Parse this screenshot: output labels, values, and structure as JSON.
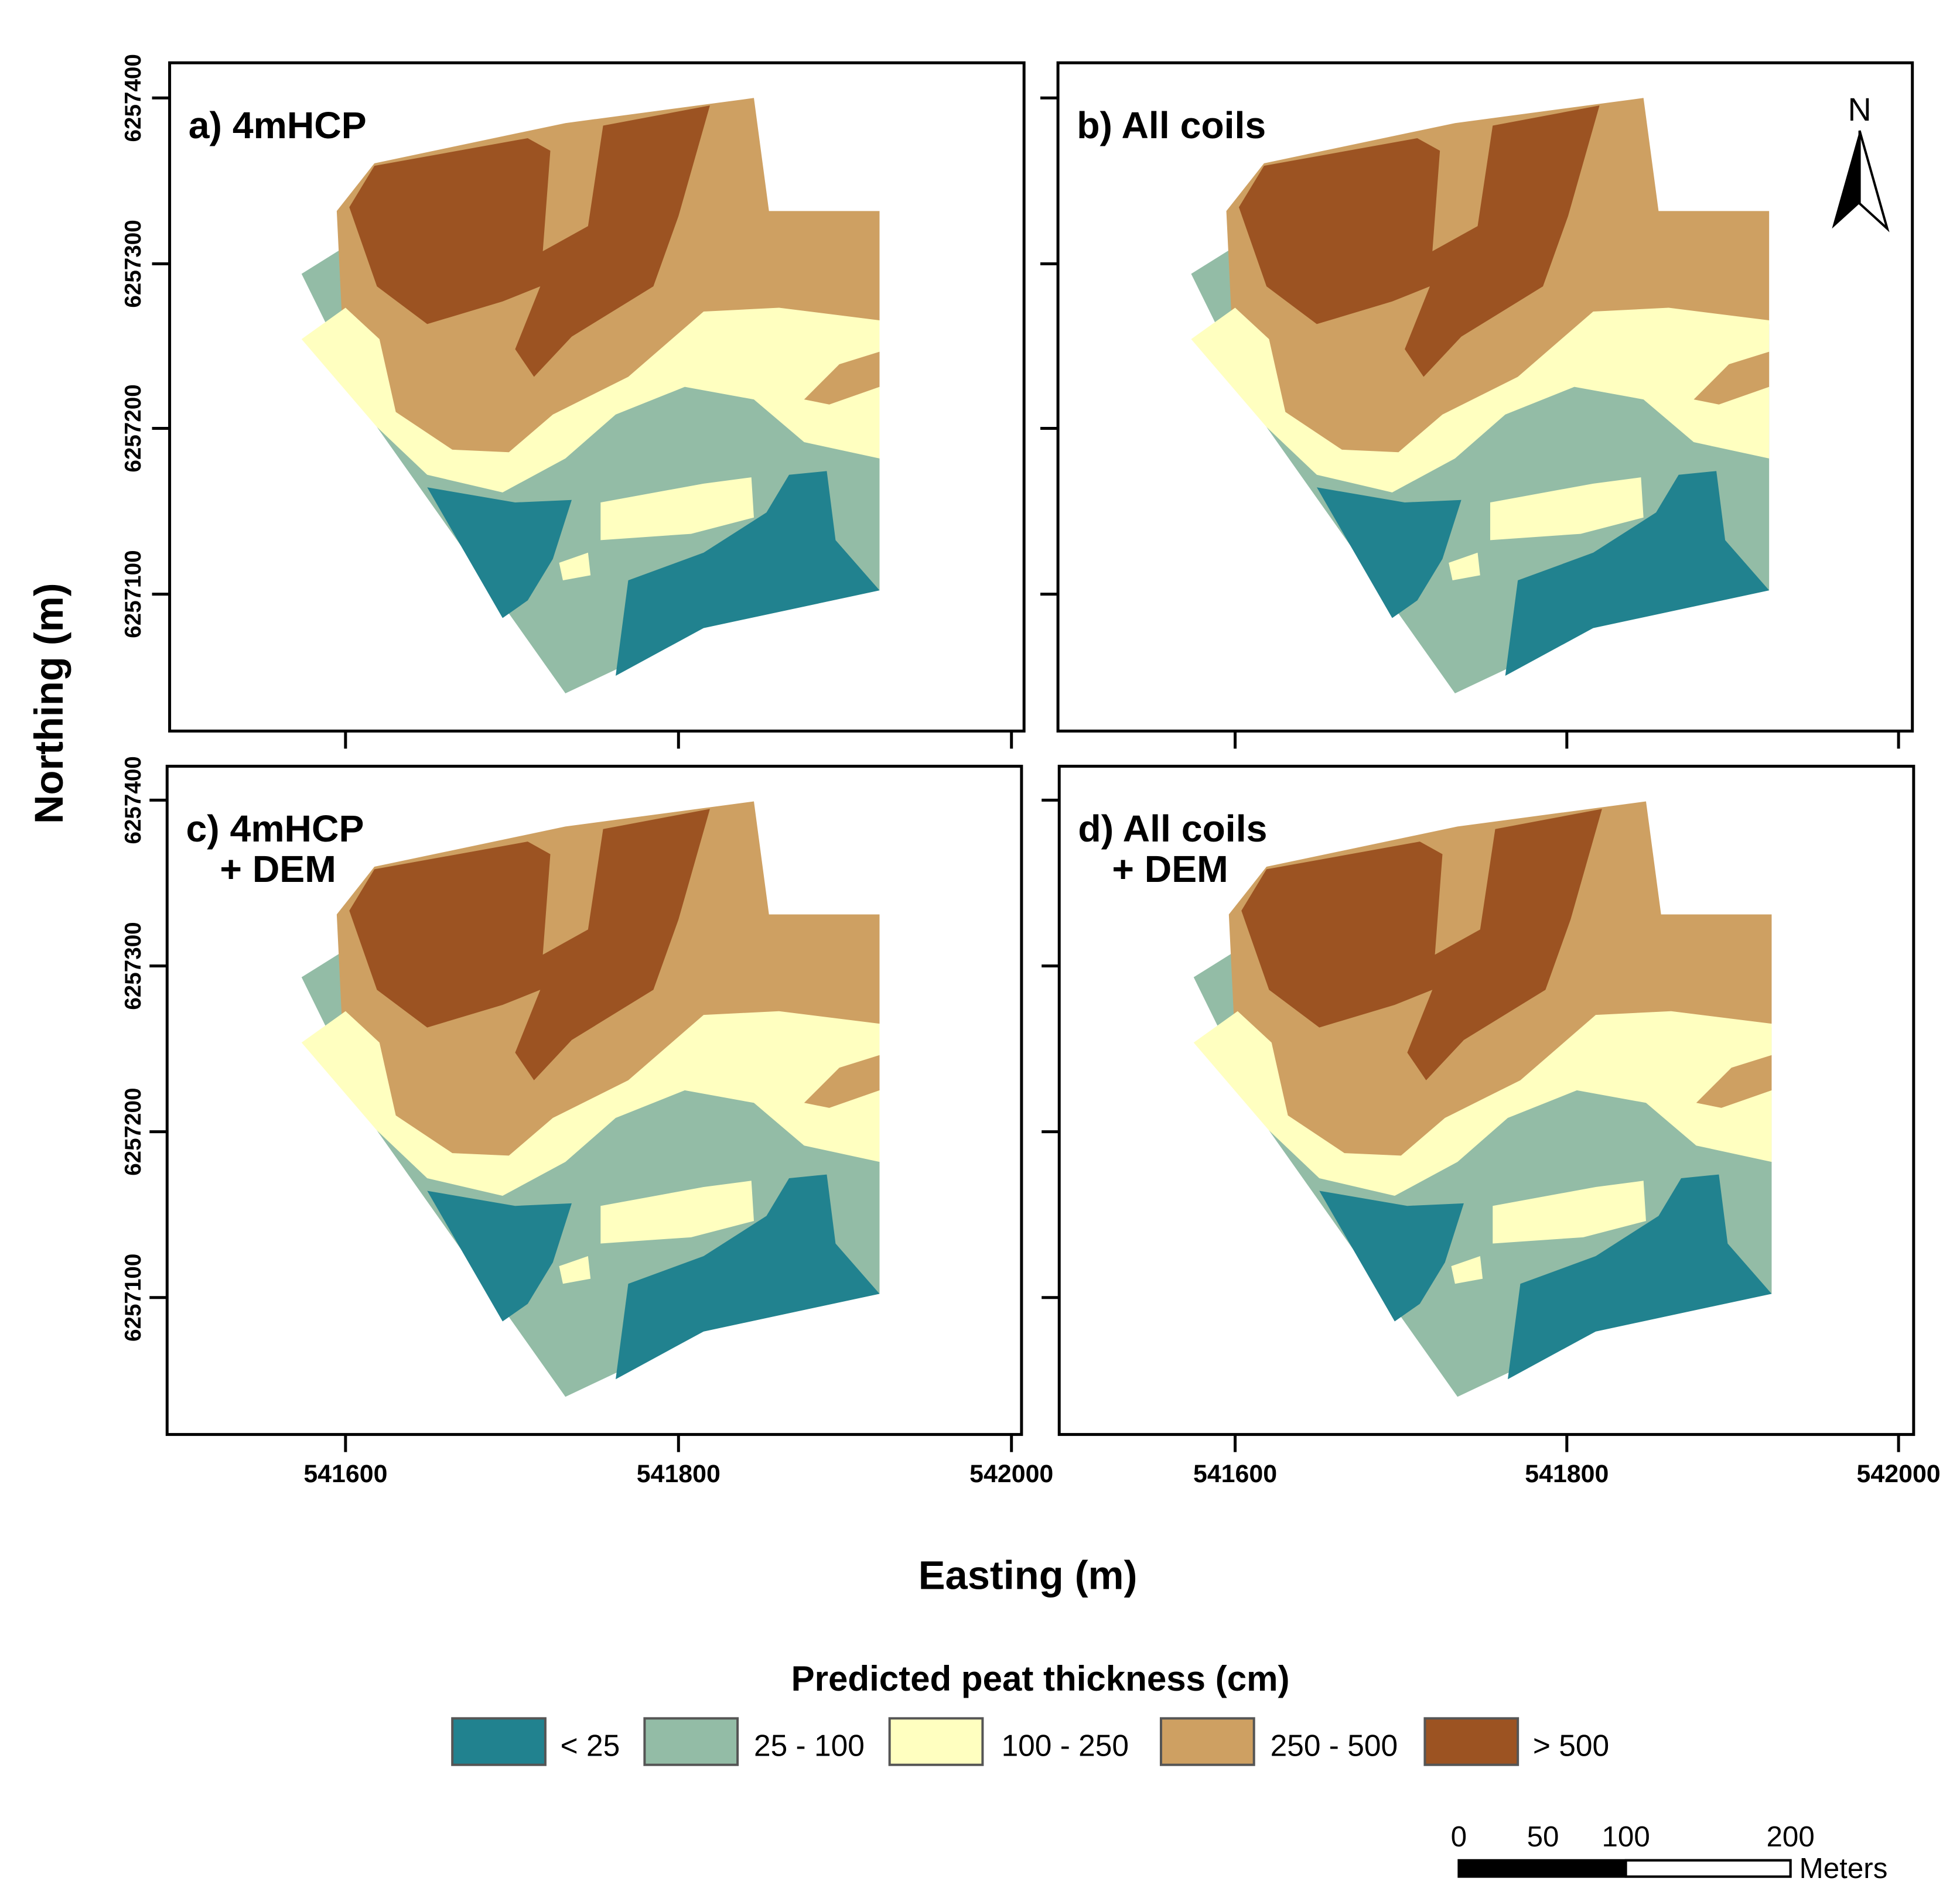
{
  "axes": {
    "xlabel": "Easting (m)",
    "ylabel": "Northing (m)",
    "x_ticks": [
      541600,
      541800,
      542000
    ],
    "y_ticks": [
      6257100,
      6257200,
      6257300,
      6257400
    ],
    "x_tick_labels": [
      "541600",
      "541800",
      "542000"
    ],
    "y_tick_labels": [
      "6257100",
      "6257200",
      "6257300",
      "6257400"
    ]
  },
  "panels": [
    {
      "id": "a",
      "title_line1": "a) 4mHCP",
      "title_line2": ""
    },
    {
      "id": "b",
      "title_line1": "b) All coils",
      "title_line2": ""
    },
    {
      "id": "c",
      "title_line1": "c) 4mHCP",
      "title_line2": "+ DEM"
    },
    {
      "id": "d",
      "title_line1": "d) All coils",
      "title_line2": "+ DEM"
    }
  ],
  "north_arrow": {
    "label": "N"
  },
  "legend": {
    "title": "Predicted peat thickness (cm)",
    "classes": [
      {
        "label": "< 25",
        "color": "#21828f"
      },
      {
        "label": "25 - 100",
        "color": "#93bca6"
      },
      {
        "label": "100 - 250",
        "color": "#ffffc0"
      },
      {
        "label": "250 - 500",
        "color": "#cea062"
      },
      {
        "label": "> 500",
        "color": "#9c5322"
      }
    ]
  },
  "scale_bar": {
    "ticks": [
      "0",
      "50",
      "100",
      "200"
    ],
    "unit": "Meters"
  }
}
